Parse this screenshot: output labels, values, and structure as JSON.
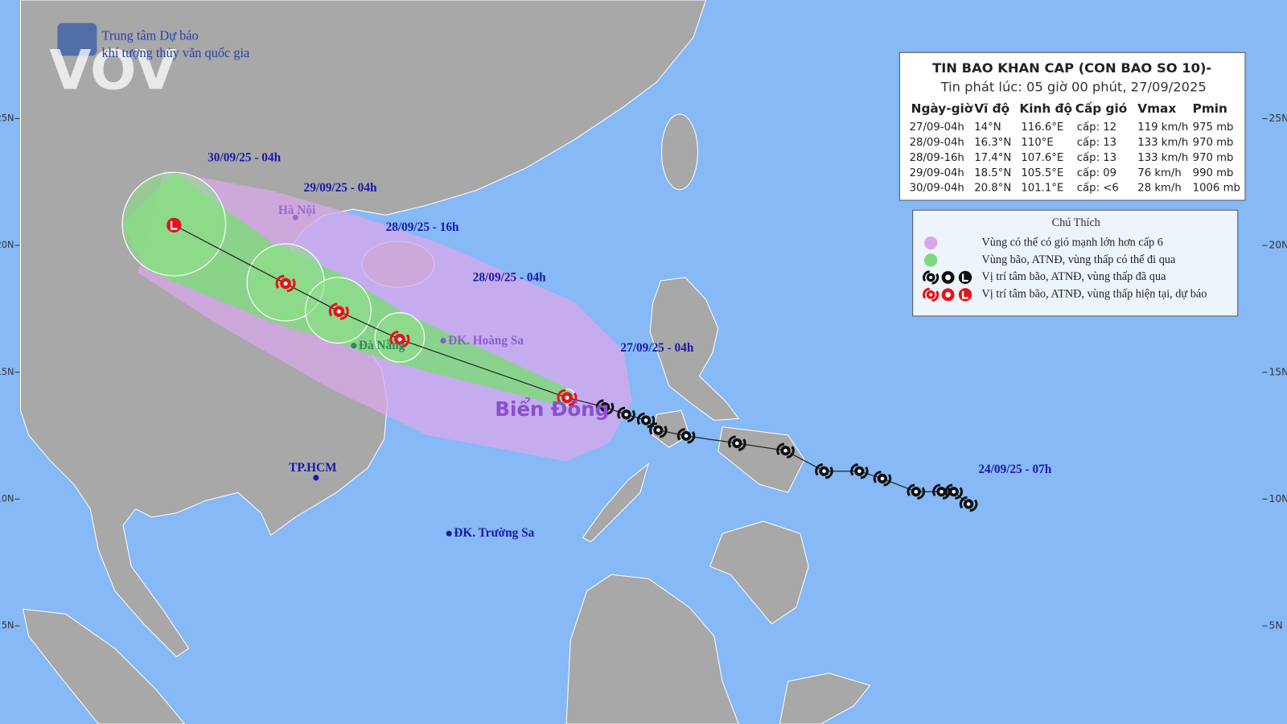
{
  "logo": {
    "line1": "Trung tâm Dự báo",
    "line2": "khí tượng thủy văn quốc gia",
    "watermark": "VOV"
  },
  "table": {
    "title": "TIN BAO KHAN CAP (CON BAO SO 10)-",
    "subtitle": "Tin phát lúc: 05 giờ 00 phút, 27/09/2025",
    "headers": [
      "Ngày-giờ",
      "Vĩ độ",
      "Kinh độ",
      "Cấp gió",
      "Vmax",
      "Pmin"
    ],
    "rows": [
      [
        "27/09-04h",
        "14°N",
        "116.6°E",
        "cấp: 12",
        "119 km/h",
        "975 mb"
      ],
      [
        "28/09-04h",
        "16.3°N",
        "110°E",
        "cấp: 13",
        "133 km/h",
        "970 mb"
      ],
      [
        "28/09-16h",
        "17.4°N",
        "107.6°E",
        "cấp: 13",
        "133 km/h",
        "970 mb"
      ],
      [
        "29/09-04h",
        "18.5°N",
        "105.5°E",
        "cấp: 09",
        "76 km/h",
        "990 mb"
      ],
      [
        "30/09-04h",
        "20.8°N",
        "101.1°E",
        "cấp: <6",
        "28 km/h",
        "1006 mb"
      ]
    ]
  },
  "legend": {
    "title": "Chú Thích",
    "items": [
      "Vùng có thể có gió mạnh lớn hơn cấp 6",
      "Vùng bão, ATNĐ, vùng thấp có thể đi qua",
      "Vị trí tâm bão, ATNĐ, vùng thấp đã qua",
      "Vị trí tâm bão, ATNĐ, vùng thấp hiện tại, dự báo"
    ]
  },
  "map": {
    "lat_ticks": [
      {
        "value": 25,
        "label": "25N"
      },
      {
        "value": 20,
        "label": "20N"
      },
      {
        "value": 15,
        "label": "15N"
      },
      {
        "value": 10,
        "label": "10N"
      },
      {
        "value": 5,
        "label": "5N"
      }
    ],
    "time_labels": [
      "30/09/25 - 04h",
      "29/09/25 - 04h",
      "28/09/25 - 16h",
      "28/09/25 - 04h",
      "27/09/25 - 04h",
      "24/09/25 - 07h"
    ],
    "places": [
      "Hà Nội",
      "Đà Nẵng",
      "ĐK. Hoàng Sa",
      "TP.HCM",
      "ĐK. Trường Sa"
    ],
    "sea": "Biển Đông"
  }
}
